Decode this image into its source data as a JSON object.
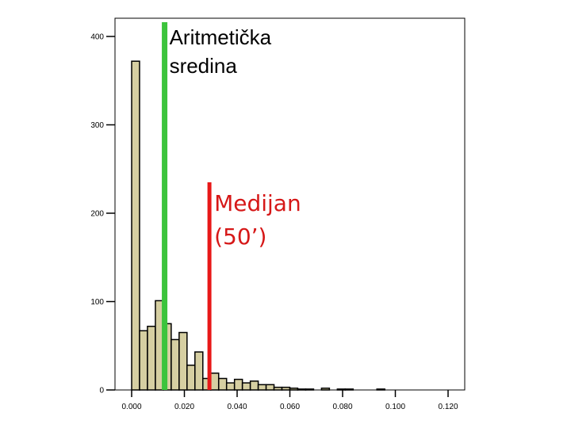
{
  "chart_data": {
    "type": "bar",
    "title": "",
    "xlabel": "",
    "ylabel": "",
    "xlim": [
      0.0,
      0.12
    ],
    "ylim": [
      0,
      400
    ],
    "x_ticks": [
      "0.000",
      "0.020",
      "0.040",
      "0.060",
      "0.080",
      "0.100",
      "0.120"
    ],
    "y_ticks": [
      "0",
      "100",
      "200",
      "300",
      "400"
    ],
    "bin_width": 0.003,
    "bin_start": 0.0,
    "values": [
      372,
      67,
      72,
      101,
      75,
      57,
      65,
      28,
      43,
      13,
      19,
      13,
      8,
      12,
      8,
      10,
      6,
      6,
      3,
      3,
      2,
      1,
      1,
      0,
      2,
      0,
      1,
      1,
      0,
      0,
      0,
      1
    ],
    "bar_color": "#d6cfa2",
    "grid": false,
    "annotations": [
      {
        "label_lines": [
          "Aritmetička",
          "sredina"
        ],
        "x": 0.0125,
        "color": "#3cc43c"
      },
      {
        "label_lines": [
          "Medijan",
          "(50’)"
        ],
        "x": 0.0295,
        "color": "#e81818"
      }
    ]
  }
}
